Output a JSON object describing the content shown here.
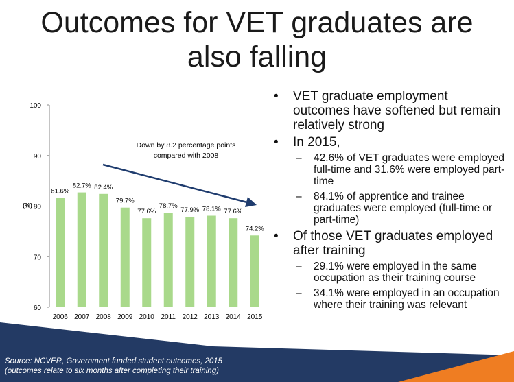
{
  "title": {
    "line1": "Outcomes for VET graduates are",
    "line2": "also falling"
  },
  "chart_data": {
    "type": "bar",
    "categories": [
      "2006",
      "2007",
      "2008",
      "2009",
      "2010",
      "2011",
      "2012",
      "2013",
      "2014",
      "2015"
    ],
    "values": [
      81.6,
      82.7,
      82.4,
      79.7,
      77.6,
      78.7,
      77.9,
      78.1,
      77.6,
      74.2
    ],
    "value_labels": [
      "81.6%",
      "82.7%",
      "82.4%",
      "79.7%",
      "77.6%",
      "78.7%",
      "77.9%",
      "78.1%",
      "77.6%",
      "74.2%"
    ],
    "ylabel": "(%)",
    "ylim": [
      60,
      100
    ],
    "yticks": [
      60,
      70,
      80,
      90,
      100
    ],
    "grid": false,
    "bar_color": "#a9d98b",
    "annotation": {
      "line1": "Down by 8.2 percentage points",
      "line2": "compared with 2008",
      "arrow_color": "#1f3c6e"
    }
  },
  "bullets": [
    {
      "text": "VET graduate employment outcomes have softened but remain relatively strong",
      "sub": []
    },
    {
      "text": "In 2015,",
      "sub": [
        "42.6% of VET graduates were employed full-time and 31.6% were employed part-time",
        "84.1% of apprentice and trainee graduates were employed (full-time or part-time)"
      ]
    },
    {
      "text": "Of those VET graduates employed after training",
      "sub": [
        "29.1% were employed in the same occupation as their training course",
        "34.1% were employed in an occupation where their training was relevant"
      ]
    }
  ],
  "bullet_marker": "•",
  "sub_marker": "–",
  "footer": {
    "source_line1": "Source: NCVER, Government funded student outcomes, 2015",
    "source_line2": "(outcomes relate to six months after completing their training)",
    "band_color": "#233a64",
    "accent_color": "#ef7d22"
  }
}
